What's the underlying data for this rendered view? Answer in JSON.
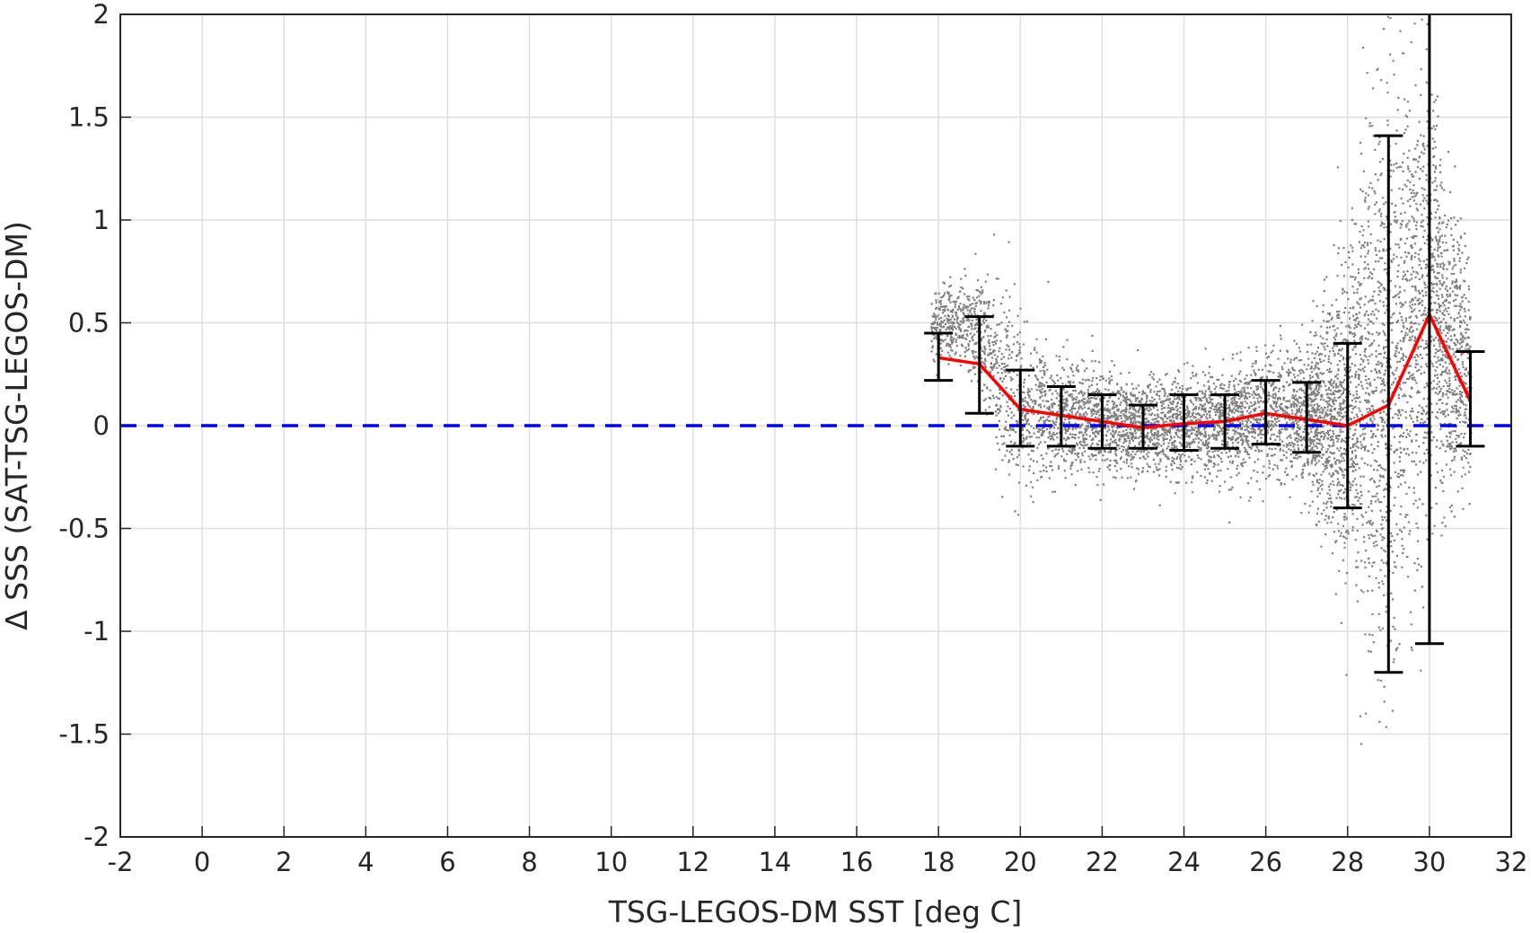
{
  "chart_data": {
    "type": "scatter",
    "title": "",
    "xlabel": "TSG-LEGOS-DM SST [deg C]",
    "ylabel": "Δ SSS (SAT-TSG-LEGOS-DM)",
    "xlim": [
      -2,
      32
    ],
    "ylim": [
      -2,
      2
    ],
    "x_ticks": [
      "-2",
      "0",
      "2",
      "4",
      "6",
      "8",
      "10",
      "12",
      "14",
      "16",
      "18",
      "20",
      "22",
      "24",
      "26",
      "28",
      "30",
      "32"
    ],
    "y_ticks": [
      "-2",
      "-1.5",
      "-1",
      "-0.5",
      "0",
      "0.5",
      "1",
      "1.5",
      "2"
    ],
    "grid": true,
    "reference_line": {
      "y": 0,
      "style": "dashed",
      "color": "#0000ee"
    },
    "scatter_color": "#808080",
    "scatter_envelope": [
      {
        "x": 17.8,
        "mean": 0.5,
        "spread": 0.08
      },
      {
        "x": 18.5,
        "mean": 0.52,
        "spread": 0.1
      },
      {
        "x": 19.0,
        "mean": 0.45,
        "spread": 0.14
      },
      {
        "x": 19.5,
        "mean": 0.25,
        "spread": 0.22
      },
      {
        "x": 20.0,
        "mean": 0.08,
        "spread": 0.17
      },
      {
        "x": 21.0,
        "mean": 0.05,
        "spread": 0.14
      },
      {
        "x": 22.0,
        "mean": 0.02,
        "spread": 0.12
      },
      {
        "x": 23.0,
        "mean": 0.0,
        "spread": 0.11
      },
      {
        "x": 24.0,
        "mean": 0.01,
        "spread": 0.12
      },
      {
        "x": 25.0,
        "mean": 0.02,
        "spread": 0.12
      },
      {
        "x": 26.0,
        "mean": 0.06,
        "spread": 0.14
      },
      {
        "x": 27.0,
        "mean": 0.04,
        "spread": 0.17
      },
      {
        "x": 27.5,
        "mean": 0.05,
        "spread": 0.3
      },
      {
        "x": 28.0,
        "mean": 0.05,
        "spread": 0.38
      },
      {
        "x": 28.5,
        "mean": 0.1,
        "spread": 0.6
      },
      {
        "x": 29.0,
        "mean": 0.2,
        "spread": 0.7
      },
      {
        "x": 29.5,
        "mean": 0.55,
        "spread": 0.6
      },
      {
        "x": 30.0,
        "mean": 0.7,
        "spread": 0.5
      },
      {
        "x": 30.5,
        "mean": 0.4,
        "spread": 0.35
      },
      {
        "x": 31.0,
        "mean": 0.2,
        "spread": 0.25
      }
    ],
    "series": [
      {
        "type": "line",
        "color": "#ff0000",
        "x": [
          18,
          19,
          20,
          21,
          22,
          23,
          24,
          25,
          26,
          27,
          28,
          29,
          30,
          31
        ],
        "y": [
          0.33,
          0.3,
          0.08,
          0.05,
          0.02,
          -0.01,
          0.01,
          0.02,
          0.06,
          0.03,
          0.0,
          0.1,
          0.54,
          0.12
        ]
      },
      {
        "type": "errorbar",
        "color": "#000000",
        "x": [
          18,
          19,
          20,
          21,
          22,
          23,
          24,
          25,
          26,
          27,
          28,
          29,
          30,
          31
        ],
        "lower": [
          0.22,
          0.06,
          -0.1,
          -0.1,
          -0.11,
          -0.11,
          -0.12,
          -0.11,
          -0.09,
          -0.13,
          -0.4,
          -1.2,
          -1.06,
          -0.1
        ],
        "upper": [
          0.45,
          0.53,
          0.27,
          0.19,
          0.15,
          0.1,
          0.15,
          0.15,
          0.22,
          0.21,
          0.4,
          1.41,
          2.0,
          0.36
        ]
      }
    ]
  }
}
